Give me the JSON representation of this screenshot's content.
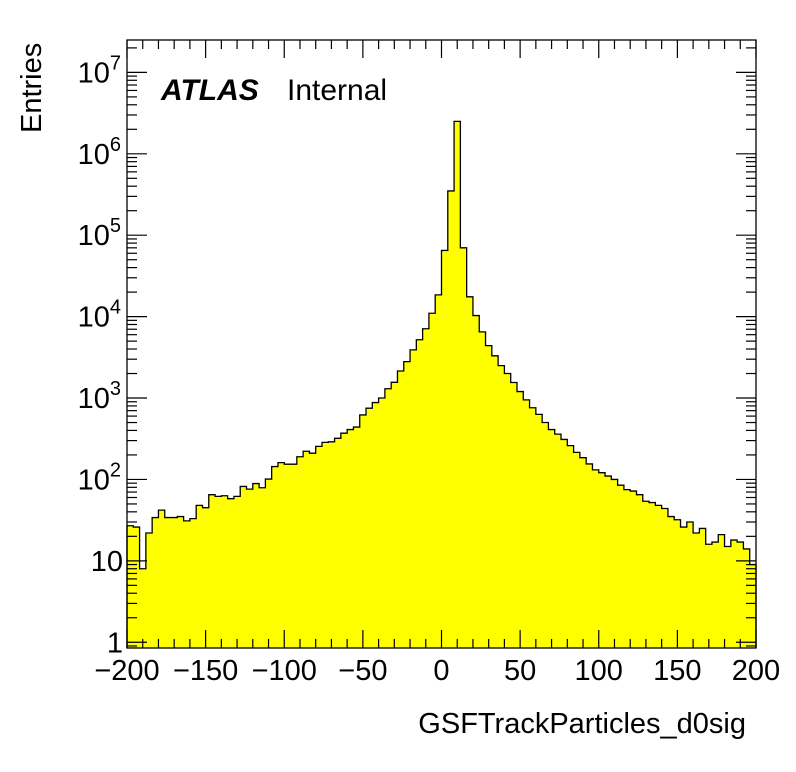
{
  "chart_data": {
    "type": "histogram",
    "xlabel": "GSFTrackParticles_d0sig",
    "ylabel": "Entries",
    "annotation": {
      "experiment": "ATLAS",
      "status": "Internal"
    },
    "x_range": [
      -200,
      200
    ],
    "y_scale": "log",
    "y_range": [
      0.85,
      25000000
    ],
    "x_ticks": [
      -200,
      -150,
      -100,
      -50,
      0,
      50,
      100,
      150,
      200
    ],
    "x_tick_labels": [
      "−200",
      "−150",
      "−100",
      "−50",
      "0",
      "50",
      "100",
      "150",
      "200"
    ],
    "y_ticks": [
      1,
      10,
      100,
      1000,
      10000,
      100000,
      1000000,
      10000000
    ],
    "y_tick_labels": [
      {
        "base": "1",
        "exp": ""
      },
      {
        "base": "10",
        "exp": ""
      },
      {
        "base": "10",
        "exp": "2"
      },
      {
        "base": "10",
        "exp": "3"
      },
      {
        "base": "10",
        "exp": "4"
      },
      {
        "base": "10",
        "exp": "5"
      },
      {
        "base": "10",
        "exp": "6"
      },
      {
        "base": "10",
        "exp": "7"
      }
    ],
    "bin_width": 4,
    "bin_low_edges": [
      -200,
      -196,
      -192,
      -188,
      -184,
      -180,
      -176,
      -172,
      -168,
      -164,
      -160,
      -156,
      -152,
      -148,
      -144,
      -140,
      -136,
      -132,
      -128,
      -124,
      -120,
      -116,
      -112,
      -108,
      -104,
      -100,
      -96,
      -92,
      -88,
      -84,
      -80,
      -76,
      -72,
      -68,
      -64,
      -60,
      -56,
      -52,
      -48,
      -44,
      -40,
      -36,
      -32,
      -28,
      -24,
      -20,
      -16,
      -12,
      -8,
      -4,
      0,
      4,
      8,
      12,
      16,
      20,
      24,
      28,
      32,
      36,
      40,
      44,
      48,
      52,
      56,
      60,
      64,
      68,
      72,
      76,
      80,
      84,
      88,
      92,
      96,
      100,
      104,
      108,
      112,
      116,
      120,
      124,
      128,
      132,
      136,
      140,
      144,
      148,
      152,
      156,
      160,
      164,
      168,
      172,
      176,
      180,
      184,
      188,
      192,
      196
    ],
    "values": [
      27,
      26,
      8,
      22,
      34,
      42,
      34,
      34,
      35,
      31,
      33,
      48,
      45,
      65,
      62,
      63,
      58,
      62,
      82,
      76,
      89,
      79,
      101,
      144,
      161,
      154,
      154,
      190,
      222,
      210,
      255,
      285,
      290,
      320,
      370,
      410,
      440,
      620,
      750,
      880,
      1000,
      1300,
      1560,
      2150,
      2800,
      3900,
      5200,
      7100,
      11000,
      18500,
      65000,
      350000,
      2500000,
      70000,
      17500,
      10300,
      6500,
      4400,
      3300,
      2500,
      2000,
      1550,
      1200,
      950,
      760,
      630,
      500,
      410,
      360,
      310,
      260,
      215,
      185,
      155,
      131,
      121,
      110,
      100,
      85,
      75,
      72,
      65,
      54,
      52,
      48,
      44,
      35,
      32,
      26,
      30,
      22,
      25,
      16,
      17,
      21,
      15,
      18,
      17,
      14,
      9
    ]
  },
  "style": {
    "fill_color": "#ffff00",
    "line_color": "#000000"
  }
}
